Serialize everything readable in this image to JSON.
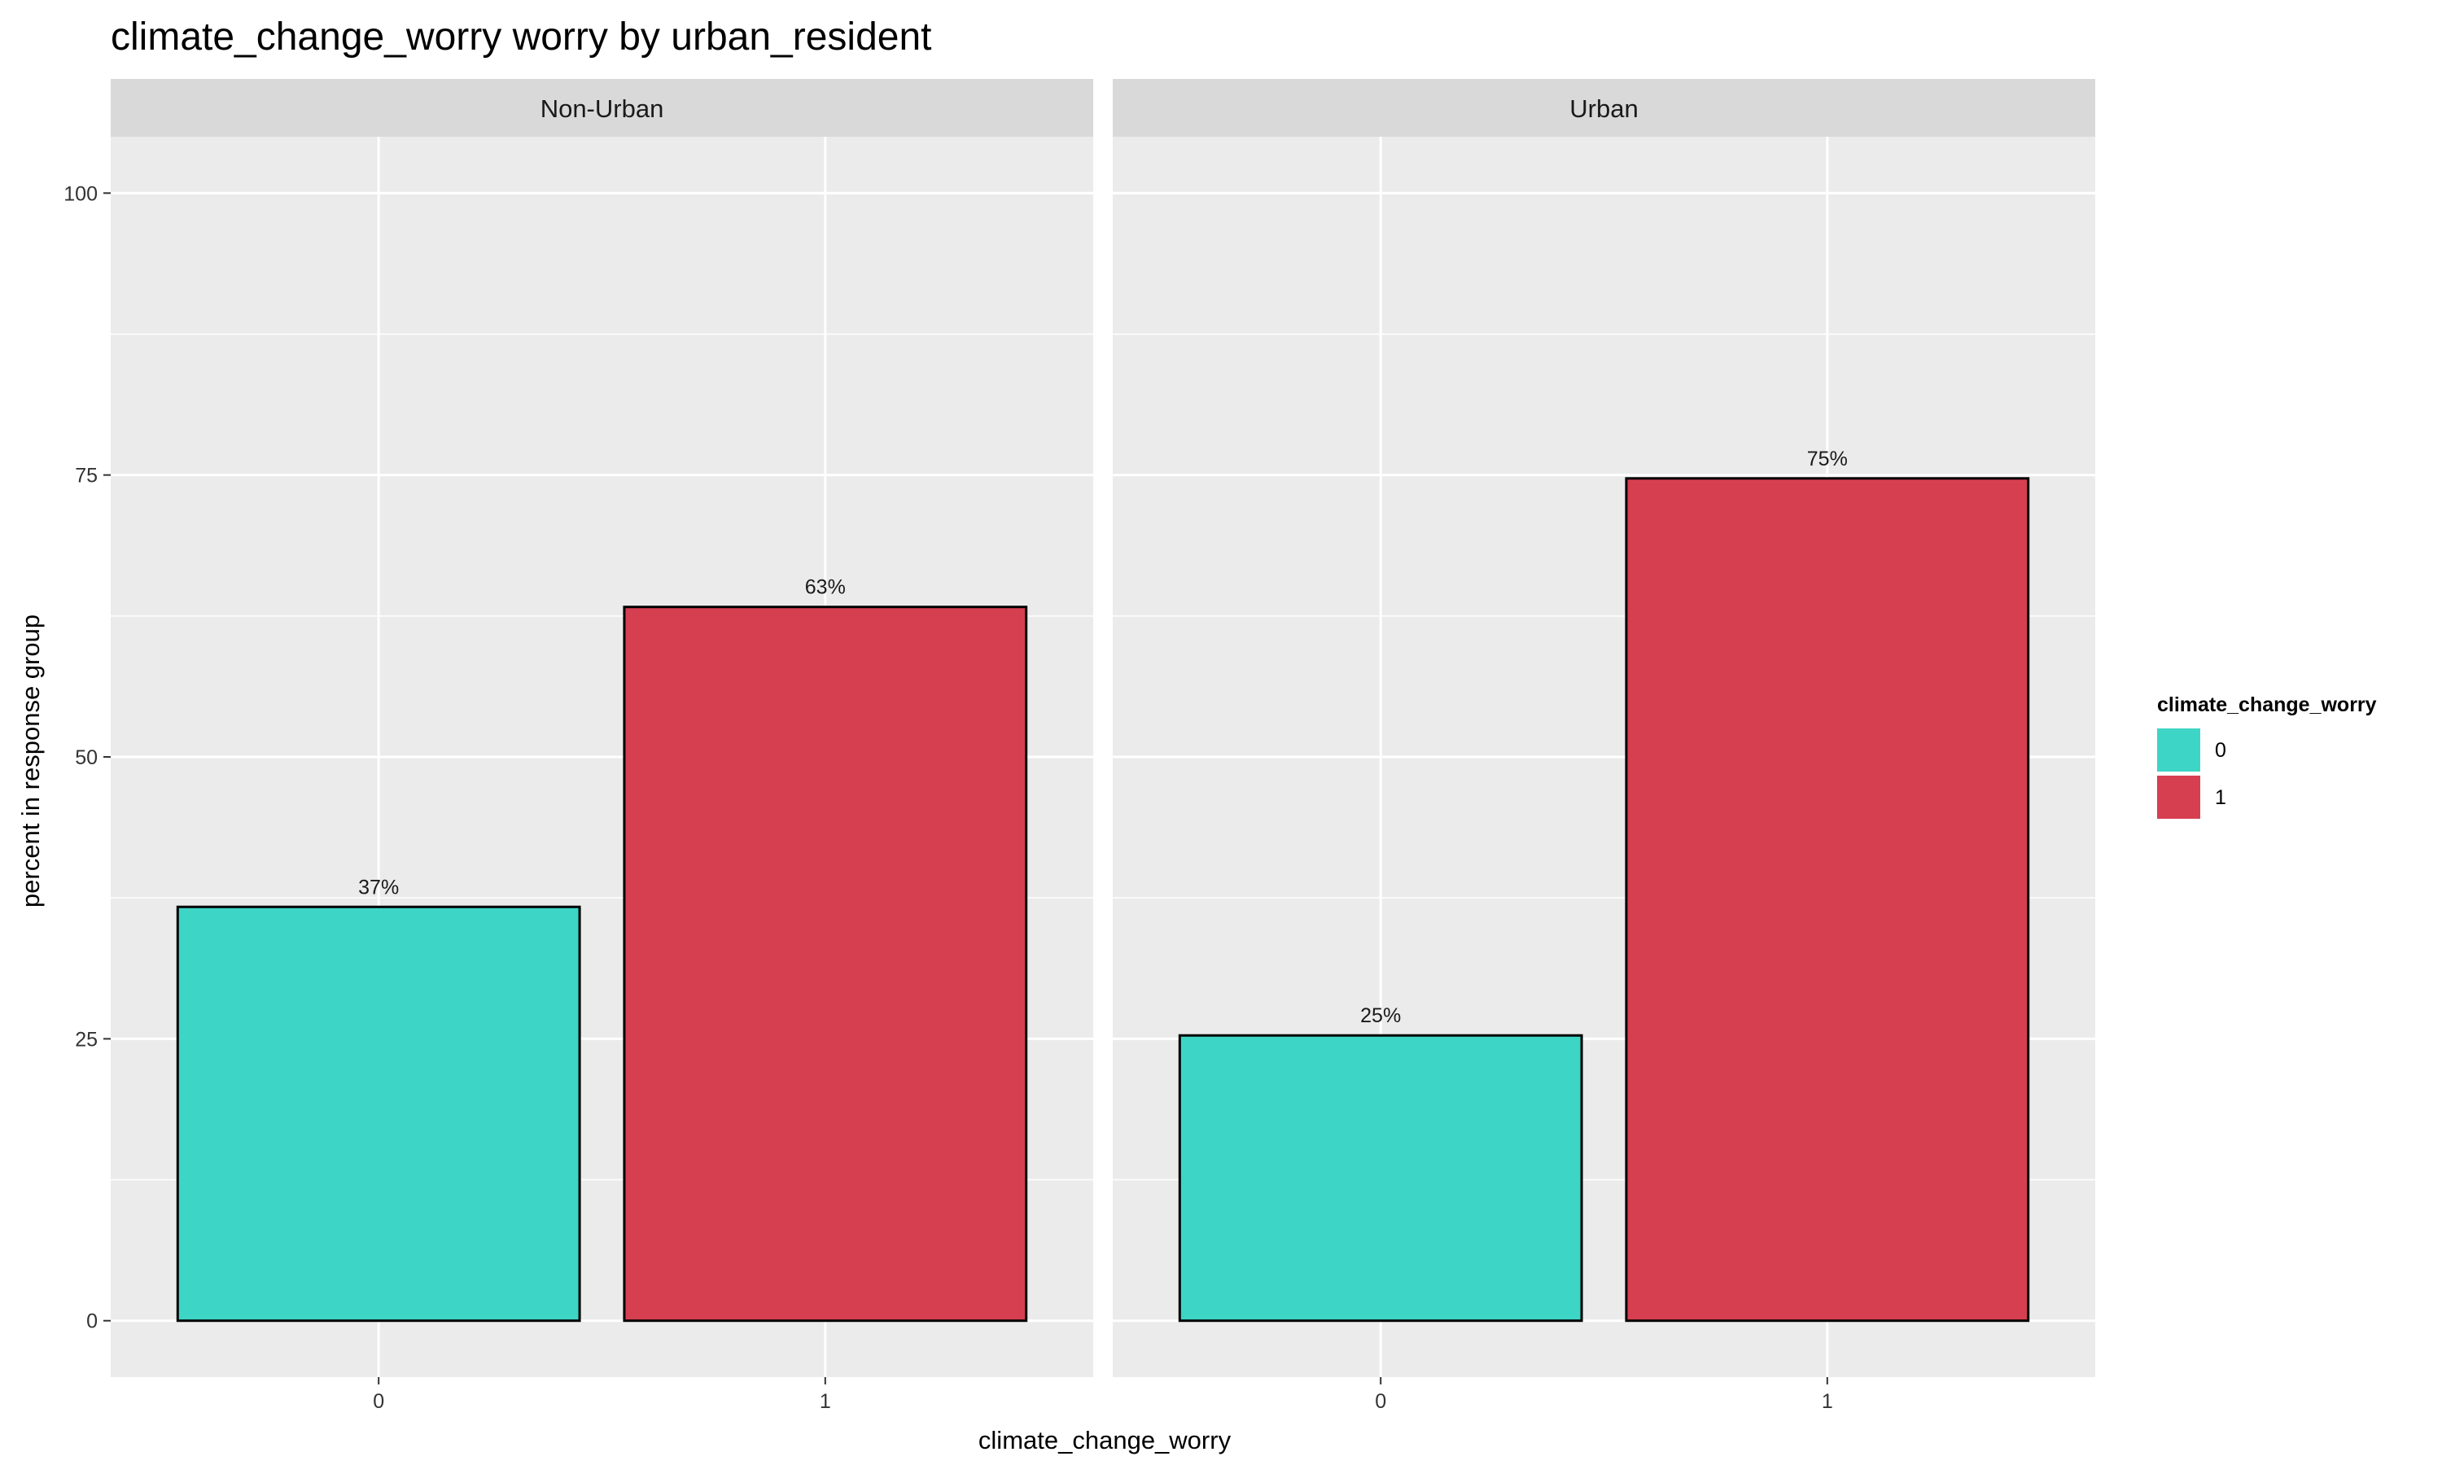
{
  "chart_data": {
    "type": "bar",
    "title": "climate_change_worry worry by urban_resident",
    "xlabel": "climate_change_worry",
    "ylabel": "percent in response group",
    "ylim": [
      -5,
      105
    ],
    "yticks": [
      0,
      25,
      50,
      75,
      100
    ],
    "categories": [
      "0",
      "1"
    ],
    "grid": true,
    "legend": {
      "title": "climate_change_worry",
      "position": "right",
      "entries": [
        {
          "label": "0",
          "color": "#3DD5C5"
        },
        {
          "label": "1",
          "color": "#D63F50"
        }
      ]
    },
    "facets": [
      {
        "name": "Non-Urban",
        "values": [
          36.7,
          63.3
        ],
        "labels": [
          "37%",
          "63%"
        ]
      },
      {
        "name": "Urban",
        "values": [
          25.3,
          74.7
        ],
        "labels": [
          "25%",
          "75%"
        ]
      }
    ],
    "colors": {
      "panel_bg": "#EBEBEB",
      "strip_bg": "#D9D9D9",
      "grid": "#FFFFFF",
      "bar_outline": "#000000"
    }
  }
}
